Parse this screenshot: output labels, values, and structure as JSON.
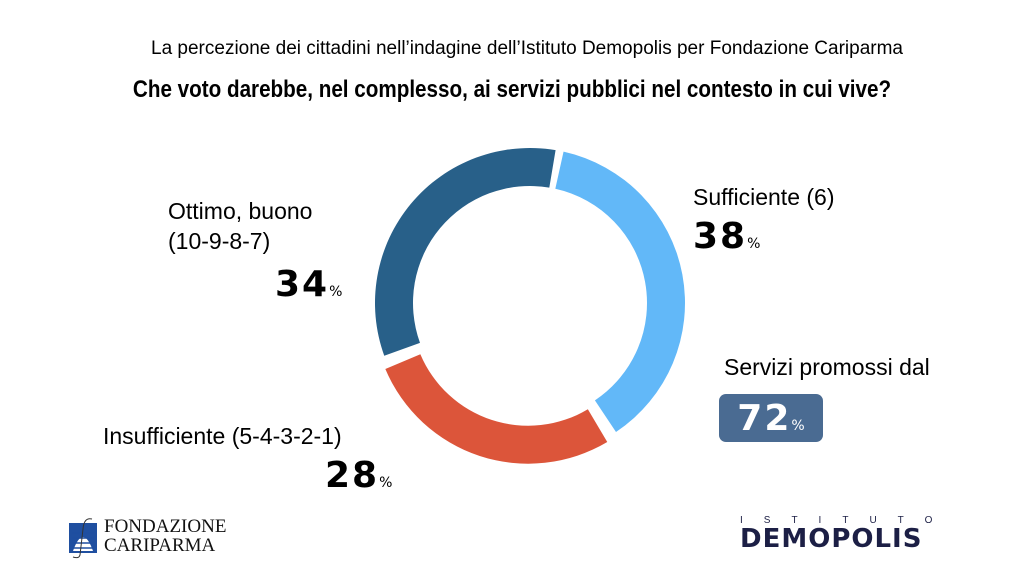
{
  "header": {
    "subtitle": "La percezione dei cittadini nell’indagine dell’Istituto Demopolis per Fondazione Cariparma",
    "title": "Che voto darebbe, nel complesso, ai servizi pubblici nel contesto in cui vive?"
  },
  "chart_data": {
    "type": "pie",
    "donut": true,
    "title": "Che voto darebbe, nel complesso, ai servizi pubblici nel contesto in cui vive?",
    "slices": [
      {
        "label": "Sufficiente (6)",
        "value": 38,
        "color": "#62b8f8"
      },
      {
        "label": "Insufficiente (5-4-3-2-1)",
        "value": 28,
        "color": "#dc553a"
      },
      {
        "label": "Ottimo, buono (10-9-8-7)",
        "value": 34,
        "color": "#286089"
      }
    ],
    "labels": {
      "ottimo_line1": "Ottimo, buono",
      "ottimo_line2": "(10-9-8-7)",
      "ottimo_value": "34",
      "sufficiente": "Sufficiente (6)",
      "sufficiente_value": "38",
      "insufficiente": "Insufficiente (5-4-3-2-1)",
      "insufficiente_value": "28",
      "percent_sign": "%"
    },
    "annotation": {
      "text": "Servizi promossi dal",
      "value": "72",
      "color": "#4a6b92"
    }
  },
  "logos": {
    "left": "FONDAZIONE CARIPARMA",
    "right_top": "ISTITUTO",
    "right_main": "DEMOPOLIS"
  }
}
